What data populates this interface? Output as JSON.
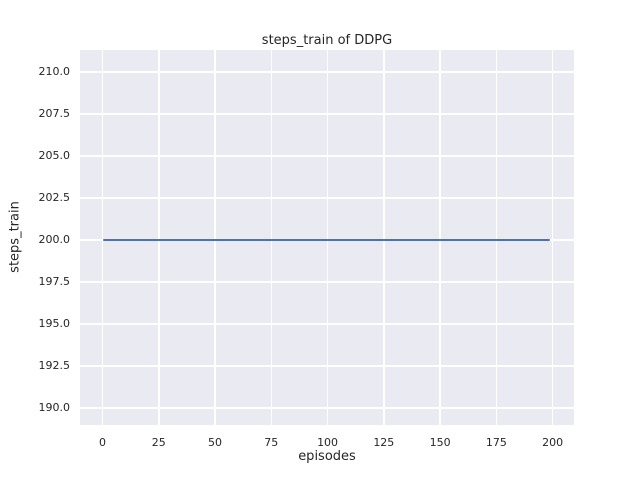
{
  "chart_data": {
    "type": "line",
    "title": "steps_train of DDPG",
    "xlabel": "episodes",
    "ylabel": "steps_train",
    "x_ticks": [
      0,
      25,
      50,
      75,
      100,
      125,
      150,
      175,
      200
    ],
    "x_tick_labels": [
      "0",
      "25",
      "50",
      "75",
      "100",
      "125",
      "150",
      "175",
      "200"
    ],
    "y_ticks": [
      190,
      192.5,
      195,
      197.5,
      200,
      202.5,
      205,
      207.5,
      210
    ],
    "y_tick_labels": [
      "190.0",
      "192.5",
      "195.0",
      "197.5",
      "200.0",
      "202.5",
      "205.0",
      "207.5",
      "210.0"
    ],
    "xlim": [
      -10,
      209.5
    ],
    "ylim": [
      189,
      211.3
    ],
    "grid": true,
    "legend": false,
    "series": [
      {
        "name": "steps_train",
        "color": "#4c72b0",
        "x": [
          0,
          199
        ],
        "y": [
          200,
          200
        ],
        "description": "constant line at steps_train = 200 across episodes 0 to 199"
      }
    ],
    "colors": {
      "figure_background": "#ffffff",
      "axes_background": "#eaeaf2",
      "gridline": "#ffffff",
      "text": "#262626"
    }
  }
}
